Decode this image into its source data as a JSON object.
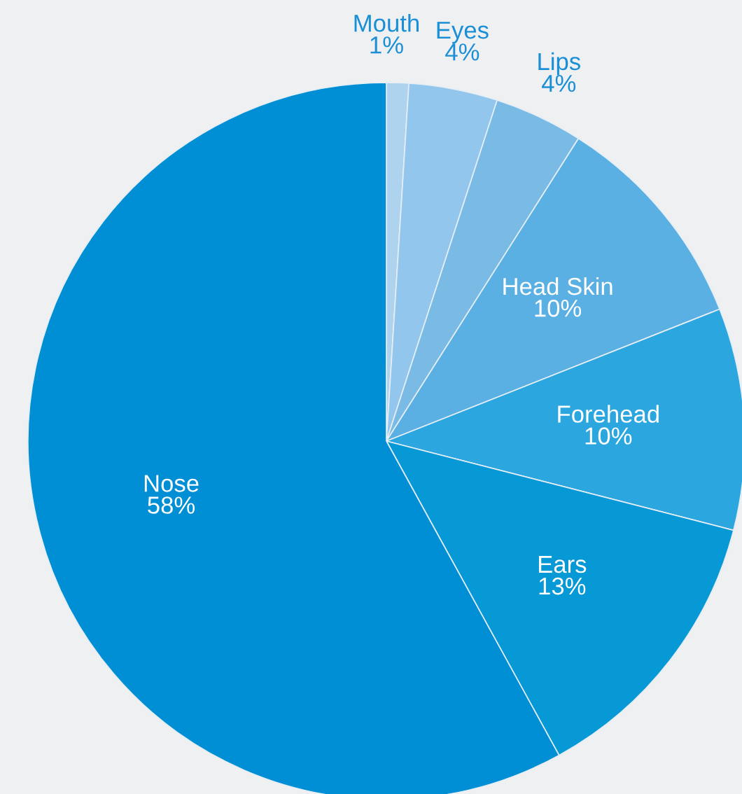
{
  "chart_data": {
    "type": "pie",
    "categories": [
      "Mouth",
      "Eyes",
      "Lips",
      "Head Skin",
      "Forehead",
      "Ears",
      "Nose"
    ],
    "values": [
      1,
      4,
      4,
      10,
      10,
      13,
      58
    ],
    "colors": [
      "#aed3ef",
      "#93c6ec",
      "#7abbe6",
      "#5ab0e2",
      "#2ca6df",
      "#0798d6",
      "#008fd5"
    ],
    "value_labels": [
      "1%",
      "4%",
      "4%",
      "10%",
      "10%",
      "13%",
      "58%"
    ]
  }
}
